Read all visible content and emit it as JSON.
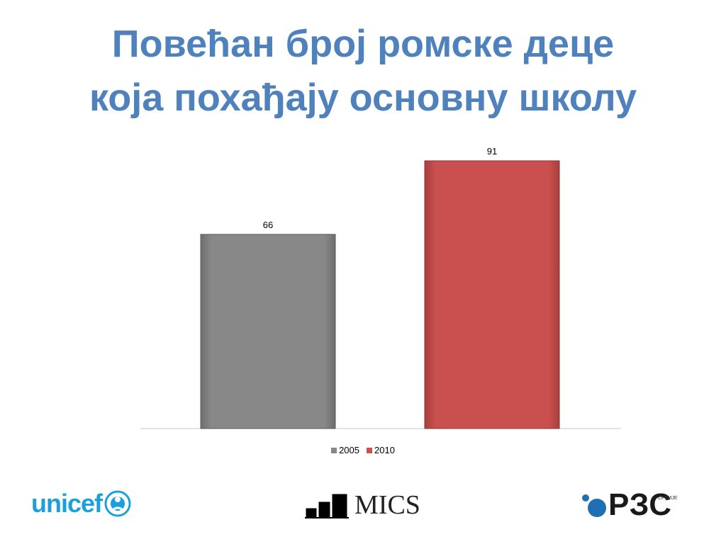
{
  "slide": {
    "title_line1": "Повећан број ромске деце",
    "title_line2": "која похађају основну школу"
  },
  "chart_data": {
    "type": "bar",
    "categories": [
      "2005",
      "2010"
    ],
    "values": [
      66,
      91
    ],
    "colors": [
      "#888888",
      "#c9504e"
    ],
    "legend": [
      "2005",
      "2010"
    ],
    "legend_position": "bottom",
    "ylim": [
      0,
      91
    ],
    "grid": false,
    "title": "",
    "xlabel": "",
    "ylabel": ""
  },
  "logos": {
    "unicef": "unicef",
    "mics": "MICS",
    "rzs": "РЗС",
    "rzs_small": "СРБИЈЕ"
  },
  "colors": {
    "title": "#4f81bd"
  }
}
